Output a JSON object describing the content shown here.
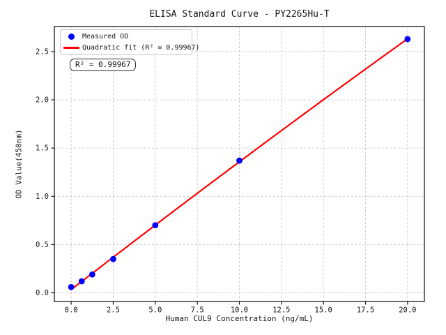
{
  "chart_data": {
    "type": "scatter",
    "title": "ELISA Standard Curve - PY2265Hu-T",
    "xlabel": "Human CUL9 Concentration (ng/mL)",
    "ylabel": "OD Value(450nm)",
    "xlim": [
      -1.0,
      21.0
    ],
    "ylim": [
      -0.09,
      2.76
    ],
    "x_tick_values": [
      0.0,
      2.5,
      5.0,
      7.5,
      10.0,
      12.5,
      15.0,
      17.5,
      20.0
    ],
    "x_tick_labels": [
      "0.0",
      "2.5",
      "5.0",
      "7.5",
      "10.0",
      "12.5",
      "15.0",
      "17.5",
      "20.0"
    ],
    "y_tick_values": [
      0.0,
      0.5,
      1.0,
      1.5,
      2.0,
      2.5
    ],
    "y_tick_labels": [
      "0.0",
      "0.5",
      "1.0",
      "1.5",
      "2.0",
      "2.5"
    ],
    "grid": true,
    "grid_color": "#c6c6c6",
    "frame_color": "#1a1a1a",
    "series": [
      {
        "name": "Measured OD",
        "type": "scatter",
        "color": "#0000ff",
        "x": [
          0,
          0.625,
          1.25,
          2.5,
          5,
          10,
          20
        ],
        "y": [
          0.06,
          0.12,
          0.19,
          0.35,
          0.7,
          1.37,
          2.63
        ]
      },
      {
        "name": "Quadratic fit (R² = 0.99967)",
        "type": "line",
        "color": "#ff0000",
        "fit": {
          "kind": "quadratic",
          "a": 0.033,
          "b": 0.135,
          "c": -0.00025,
          "x_range": [
            0,
            20
          ],
          "r_squared": 0.99967
        }
      }
    ],
    "legend": {
      "position": "upper left",
      "entries": [
        "Measured OD",
        "Quadratic fit (R² = 0.99967)"
      ]
    },
    "annotation": {
      "text": "R² = 0.99967"
    }
  }
}
